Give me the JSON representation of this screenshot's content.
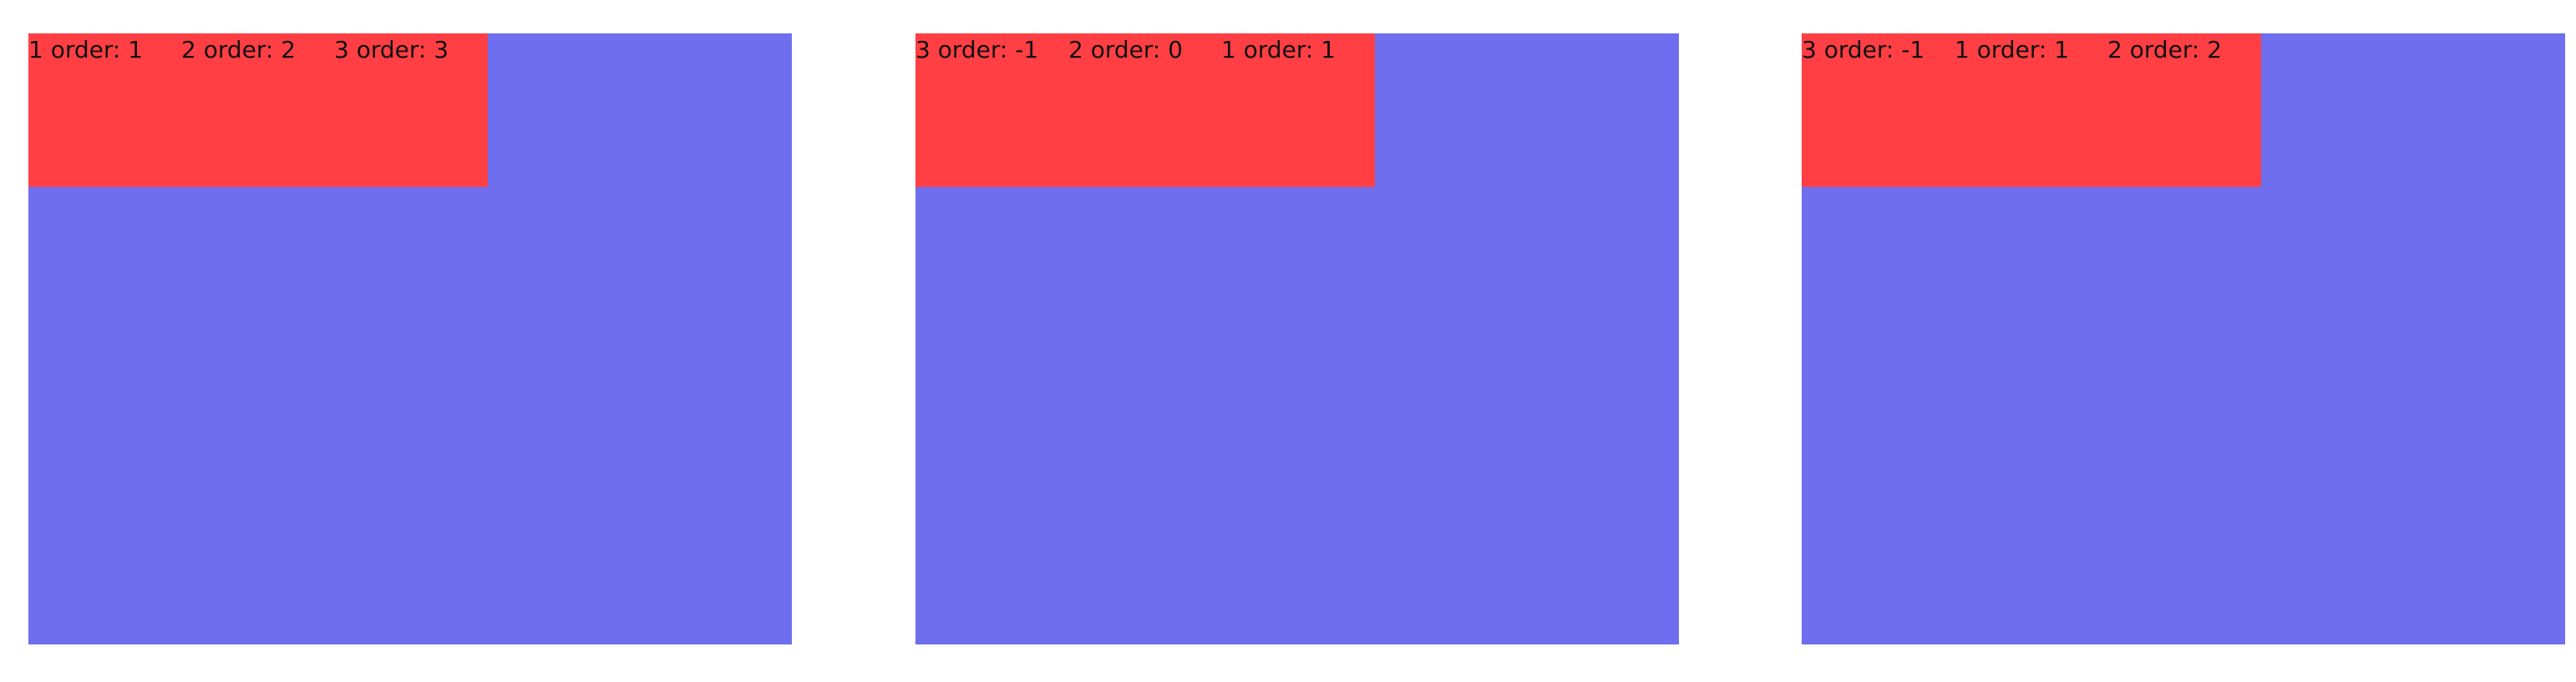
{
  "demos": [
    {
      "items": [
        {
          "label": "1 order: 1"
        },
        {
          "label": "2 order: 2"
        },
        {
          "label": "3 order: 3"
        }
      ]
    },
    {
      "items": [
        {
          "label": "3 order: -1"
        },
        {
          "label": "2 order: 0"
        },
        {
          "label": "1 order: 1"
        }
      ]
    },
    {
      "items": [
        {
          "label": "3 order: -1"
        },
        {
          "label": "1 order: 1"
        },
        {
          "label": "2 order: 2"
        }
      ]
    }
  ],
  "colors": {
    "container": "#6e6eef",
    "items_box": "#ff3f43",
    "text": "#111111",
    "page_background": "#ffffff"
  }
}
